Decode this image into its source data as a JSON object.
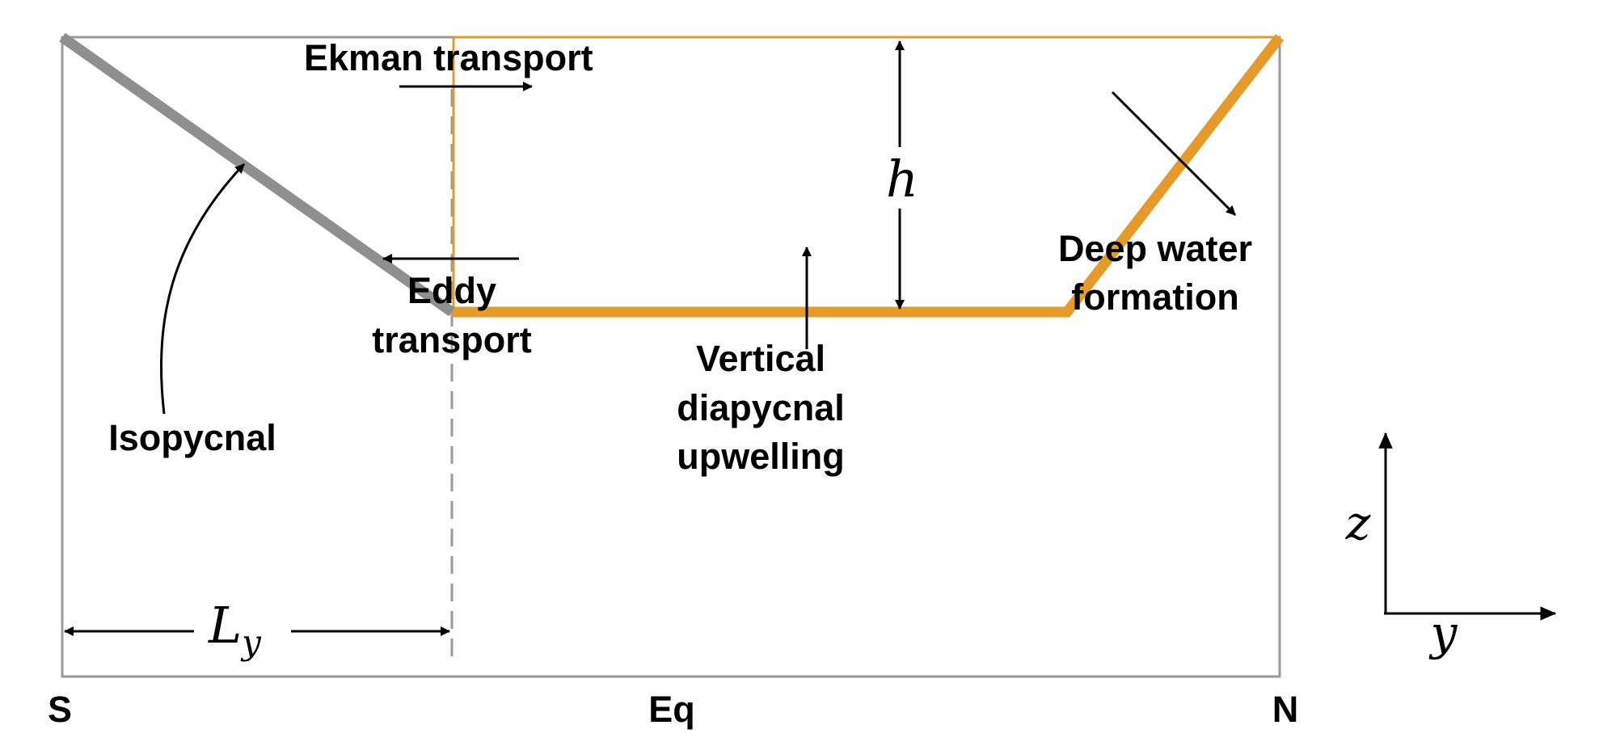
{
  "diagram": {
    "labels": {
      "ekman": "Ekman transport",
      "h": "h",
      "deep_water_line1": "Deep water",
      "deep_water_line2": "formation",
      "eddy_line1": "Eddy",
      "eddy_line2": "transport",
      "vertical_line1": "Vertical",
      "vertical_line2": "diapycnal",
      "vertical_line3": "upwelling",
      "isopycnal": "Isopycnal",
      "ly_main": "L",
      "ly_sub": "y",
      "south": "S",
      "equator": "Eq",
      "north": "N",
      "axis_z": "z",
      "axis_y": "y"
    },
    "colors": {
      "box": "#9a9a9a",
      "isopycnal": "#8f8f8f",
      "thermocline": "#e69a2a",
      "arrow": "#000000"
    }
  }
}
